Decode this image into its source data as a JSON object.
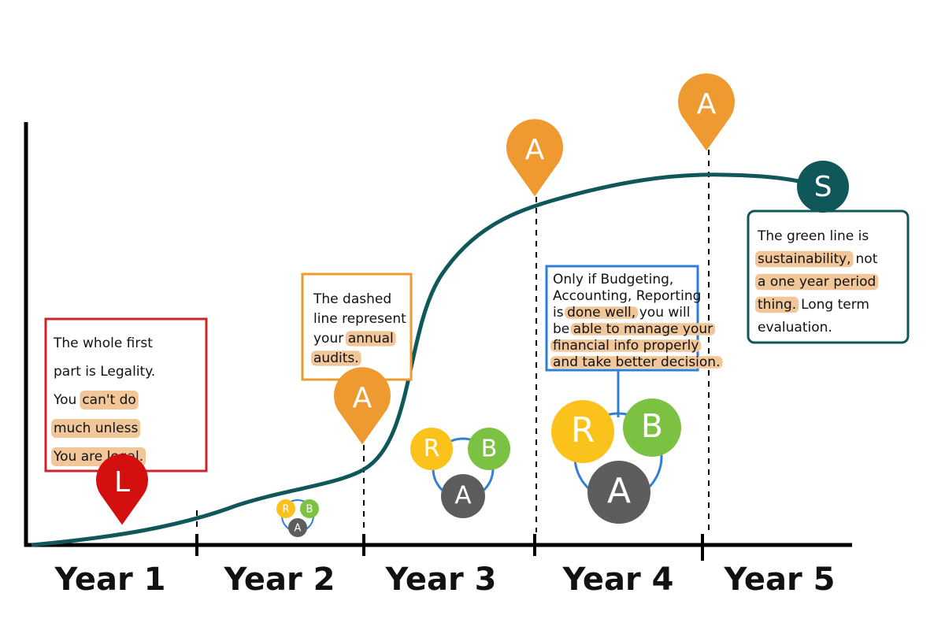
{
  "x_axis_labels": [
    "Year 1",
    "Year 2",
    "Year 3",
    "Year 4",
    "Year 5"
  ],
  "markers": {
    "legality": "L",
    "audits": [
      "A",
      "A",
      "A"
    ],
    "sustainability": "S"
  },
  "clusters": [
    [
      "R",
      "B",
      "A"
    ],
    [
      "R",
      "B",
      "A"
    ],
    [
      "R",
      "B",
      "A"
    ]
  ],
  "notes": [
    {
      "lines": [
        [
          {
            "text": "The whole first",
            "highlight": false
          }
        ],
        [
          {
            "text": "part is Legality.",
            "highlight": false
          }
        ],
        [
          {
            "text": "You",
            "highlight": false
          },
          {
            "text": "can't do",
            "highlight": true
          }
        ],
        [
          {
            "text": "much unless",
            "highlight": true
          }
        ],
        [
          {
            "text": "You are legal.",
            "highlight": true
          }
        ]
      ]
    },
    {
      "lines": [
        [
          {
            "text": "The dashed",
            "highlight": false
          }
        ],
        [
          {
            "text": "line represent",
            "highlight": false
          }
        ],
        [
          {
            "text": "your",
            "highlight": false
          },
          {
            "text": "annual",
            "highlight": true
          }
        ],
        [
          {
            "text": "audits.",
            "highlight": true
          }
        ]
      ]
    },
    {
      "lines": [
        [
          {
            "text": "Only if Budgeting,",
            "highlight": false
          }
        ],
        [
          {
            "text": "Accounting, Reporting",
            "highlight": false
          }
        ],
        [
          {
            "text": "is",
            "highlight": false
          },
          {
            "text": "done well,",
            "highlight": true
          },
          {
            "text": "you will",
            "highlight": false
          }
        ],
        [
          {
            "text": "be",
            "highlight": false
          },
          {
            "text": "able to manage your",
            "highlight": true
          }
        ],
        [
          {
            "text": "financial info properly",
            "highlight": true
          }
        ],
        [
          {
            "text": "and take better decision.",
            "highlight": true
          }
        ]
      ]
    },
    {
      "lines": [
        [
          {
            "text": "The green line is",
            "highlight": false
          }
        ],
        [
          {
            "text": "sustainability,",
            "highlight": true
          },
          {
            "text": "not",
            "highlight": false
          }
        ],
        [
          {
            "text": "a one year period",
            "highlight": true
          }
        ],
        [
          {
            "text": "thing.",
            "highlight": true
          },
          {
            "text": "Long term",
            "highlight": false
          }
        ],
        [
          {
            "text": "evaluation.",
            "highlight": false
          }
        ]
      ]
    }
  ]
}
